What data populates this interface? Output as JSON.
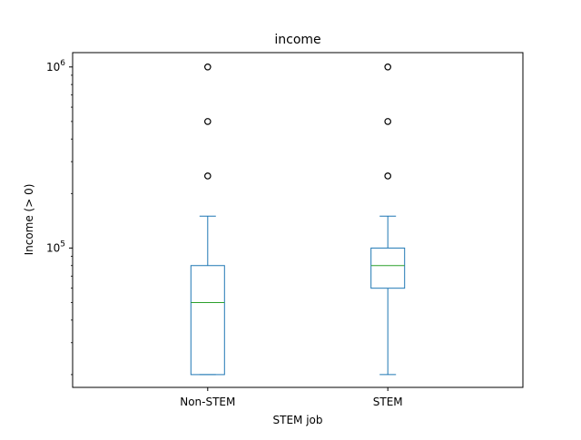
{
  "chart_data": {
    "type": "box",
    "title": "income",
    "xlabel": "STEM job",
    "ylabel": "Income (> 0)",
    "yscale": "log",
    "ylim": [
      17000,
      1200000
    ],
    "y_major_ticks": [
      {
        "value": 100000,
        "base": "10",
        "exp": "5"
      },
      {
        "value": 1000000,
        "base": "10",
        "exp": "6"
      }
    ],
    "categories": [
      "Non-STEM",
      "STEM"
    ],
    "boxes": [
      {
        "category": "Non-STEM",
        "whisker_low": 20000,
        "q1": 20000,
        "median": 50000,
        "q3": 80000,
        "whisker_high": 150000,
        "outliers": [
          250000,
          500000,
          1000000
        ]
      },
      {
        "category": "STEM",
        "whisker_low": 20000,
        "q1": 60000,
        "median": 80000,
        "q3": 100000,
        "whisker_high": 150000,
        "outliers": [
          250000,
          500000,
          1000000
        ]
      }
    ],
    "box_color": "#1f77b4",
    "median_color": "#2ca02c",
    "outlier_color": "#000000",
    "grid": false,
    "legend": "none"
  }
}
